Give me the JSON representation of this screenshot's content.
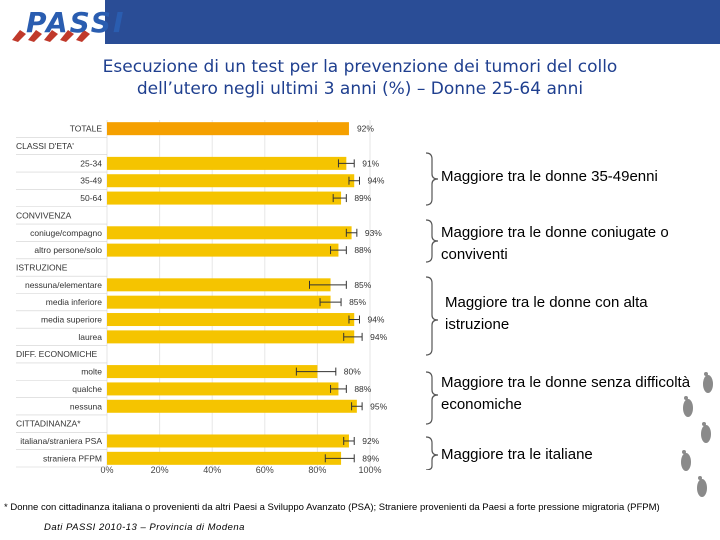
{
  "header": {
    "logo_text": "PASSI"
  },
  "title": {
    "line1": "Esecuzione di un test per la prevenzione dei tumori del collo",
    "line2": "dell’utero negli ultimi 3 anni (%) – Donne 25-64 anni"
  },
  "chart_data": {
    "type": "bar",
    "orientation": "horizontal",
    "title": "Esecuzione di un test per la prevenzione dei tumori del collo dell’utero negli ultimi 3 anni (%) – Donne 25-64 anni",
    "xlim": [
      0,
      100
    ],
    "xticks": [
      "0%",
      "20%",
      "40%",
      "60%",
      "80%",
      "100%"
    ],
    "bar_color": "#f5c400",
    "total_color": "#f5a000",
    "rows": [
      {
        "label": "TOTALE",
        "kind": "total",
        "value": 92,
        "value_label": "92%"
      },
      {
        "label": "CLASSI D'ETA'",
        "kind": "group"
      },
      {
        "label": "25-34",
        "kind": "bar",
        "value": 91,
        "value_label": "91%",
        "ci": [
          88,
          94
        ]
      },
      {
        "label": "35-49",
        "kind": "bar",
        "value": 94,
        "value_label": "94%",
        "ci": [
          92,
          96
        ]
      },
      {
        "label": "50-64",
        "kind": "bar",
        "value": 89,
        "value_label": "89%",
        "ci": [
          86,
          91
        ]
      },
      {
        "label": "CONVIVENZA",
        "kind": "group"
      },
      {
        "label": "coniuge/compagno",
        "kind": "bar",
        "value": 93,
        "value_label": "93%",
        "ci": [
          91,
          95
        ]
      },
      {
        "label": "altro persone/solo",
        "kind": "bar",
        "value": 88,
        "value_label": "88%",
        "ci": [
          85,
          91
        ]
      },
      {
        "label": "ISTRUZIONE",
        "kind": "group"
      },
      {
        "label": "nessuna/elementare",
        "kind": "bar",
        "value": 85,
        "value_label": "85%",
        "ci": [
          77,
          91
        ]
      },
      {
        "label": "media inferiore",
        "kind": "bar",
        "value": 85,
        "value_label": "85%",
        "ci": [
          81,
          89
        ]
      },
      {
        "label": "media superiore",
        "kind": "bar",
        "value": 94,
        "value_label": "94%",
        "ci": [
          92,
          96
        ]
      },
      {
        "label": "laurea",
        "kind": "bar",
        "value": 94,
        "value_label": "94%",
        "ci": [
          90,
          97
        ]
      },
      {
        "label": "DIFF. ECONOMICHE",
        "kind": "group"
      },
      {
        "label": "molte",
        "kind": "bar",
        "value": 80,
        "value_label": "80%",
        "ci": [
          72,
          87
        ]
      },
      {
        "label": "qualche",
        "kind": "bar",
        "value": 88,
        "value_label": "88%",
        "ci": [
          85,
          91
        ]
      },
      {
        "label": "nessuna",
        "kind": "bar",
        "value": 95,
        "value_label": "95%",
        "ci": [
          93,
          97
        ]
      },
      {
        "label": "CITTADINANZA*",
        "kind": "group"
      },
      {
        "label": "italiana/straniera PSA",
        "kind": "bar",
        "value": 92,
        "value_label": "92%",
        "ci": [
          90,
          94
        ]
      },
      {
        "label": "straniera PFPM",
        "kind": "bar",
        "value": 89,
        "value_label": "89%",
        "ci": [
          83,
          94
        ]
      }
    ]
  },
  "annotations": [
    {
      "text": "Maggiore tra le donne 35-49enni"
    },
    {
      "text": "Maggiore tra le donne coniugate o conviventi"
    },
    {
      "text": "Maggiore tra le donne con alta istruzione"
    },
    {
      "text": "Maggiore tra le donne senza difficoltà economiche"
    },
    {
      "text": "Maggiore tra le italiane"
    }
  ],
  "footnote": "* Donne con cittadinanza italiana o provenienti da altri Paesi a Sviluppo Avanzato (PSA); Straniere provenienti da Paesi a forte pressione migratoria (PFPM)",
  "source": "Dati PASSI 2010-13 – Provincia di Modena"
}
